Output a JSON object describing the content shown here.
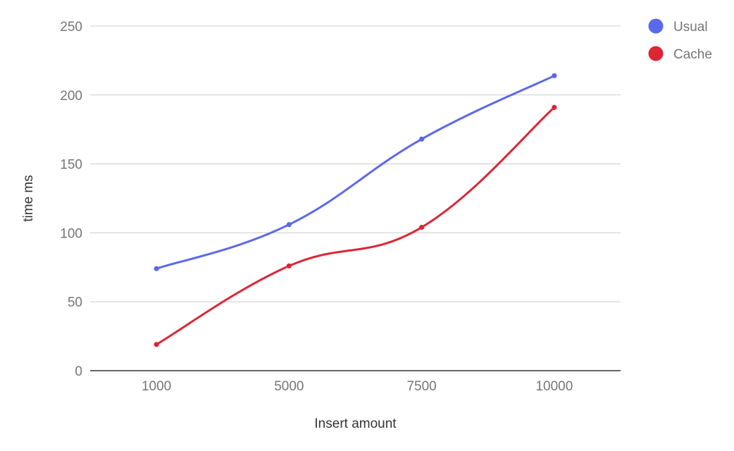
{
  "chart_data": {
    "type": "line",
    "title": "",
    "xlabel": "Insert amount",
    "ylabel": "time ms",
    "categories": [
      "1000",
      "5000",
      "7500",
      "10000"
    ],
    "ylim": [
      0,
      250
    ],
    "yticks": [
      0,
      50,
      100,
      150,
      200,
      250
    ],
    "grid": true,
    "smooth": true,
    "legend_position": "right",
    "series": [
      {
        "name": "Usual",
        "color": "#5b68ec",
        "values": [
          74,
          106,
          168,
          214
        ]
      },
      {
        "name": "Cache",
        "color": "#dd2535",
        "values": [
          19,
          76,
          104,
          191
        ]
      }
    ]
  }
}
